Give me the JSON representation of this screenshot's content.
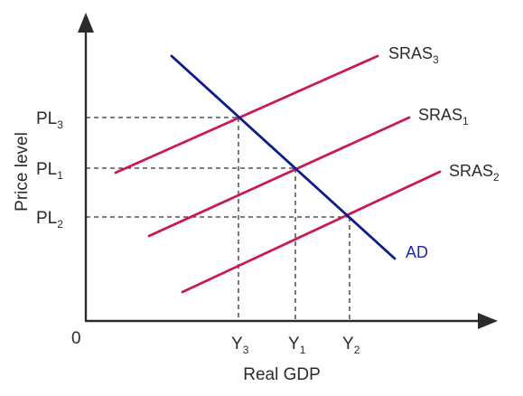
{
  "diagram": {
    "origin_label": "0",
    "x_axis_title": "Real GDP",
    "y_axis_title": "Price level",
    "price_levels": [
      {
        "id": "pl3",
        "base": "PL",
        "sub": "3"
      },
      {
        "id": "pl1",
        "base": "PL",
        "sub": "1"
      },
      {
        "id": "pl2",
        "base": "PL",
        "sub": "2"
      }
    ],
    "outputs": [
      {
        "id": "y3",
        "base": "Y",
        "sub": "3"
      },
      {
        "id": "y1",
        "base": "Y",
        "sub": "1"
      },
      {
        "id": "y2",
        "base": "Y",
        "sub": "2"
      }
    ],
    "curves": {
      "sras3": {
        "base": "SRAS",
        "sub": "3",
        "color": "#c8195a"
      },
      "sras1": {
        "base": "SRAS",
        "sub": "1",
        "color": "#c8195a"
      },
      "sras2": {
        "base": "SRAS",
        "sub": "2",
        "color": "#c8195a"
      },
      "ad": {
        "label": "AD",
        "color": "#0d1a8c",
        "label_color": "#1a2aa8"
      }
    },
    "colors": {
      "axis": "#2b2b2b",
      "guide": "#333333",
      "text": "#2b2b2b"
    }
  }
}
